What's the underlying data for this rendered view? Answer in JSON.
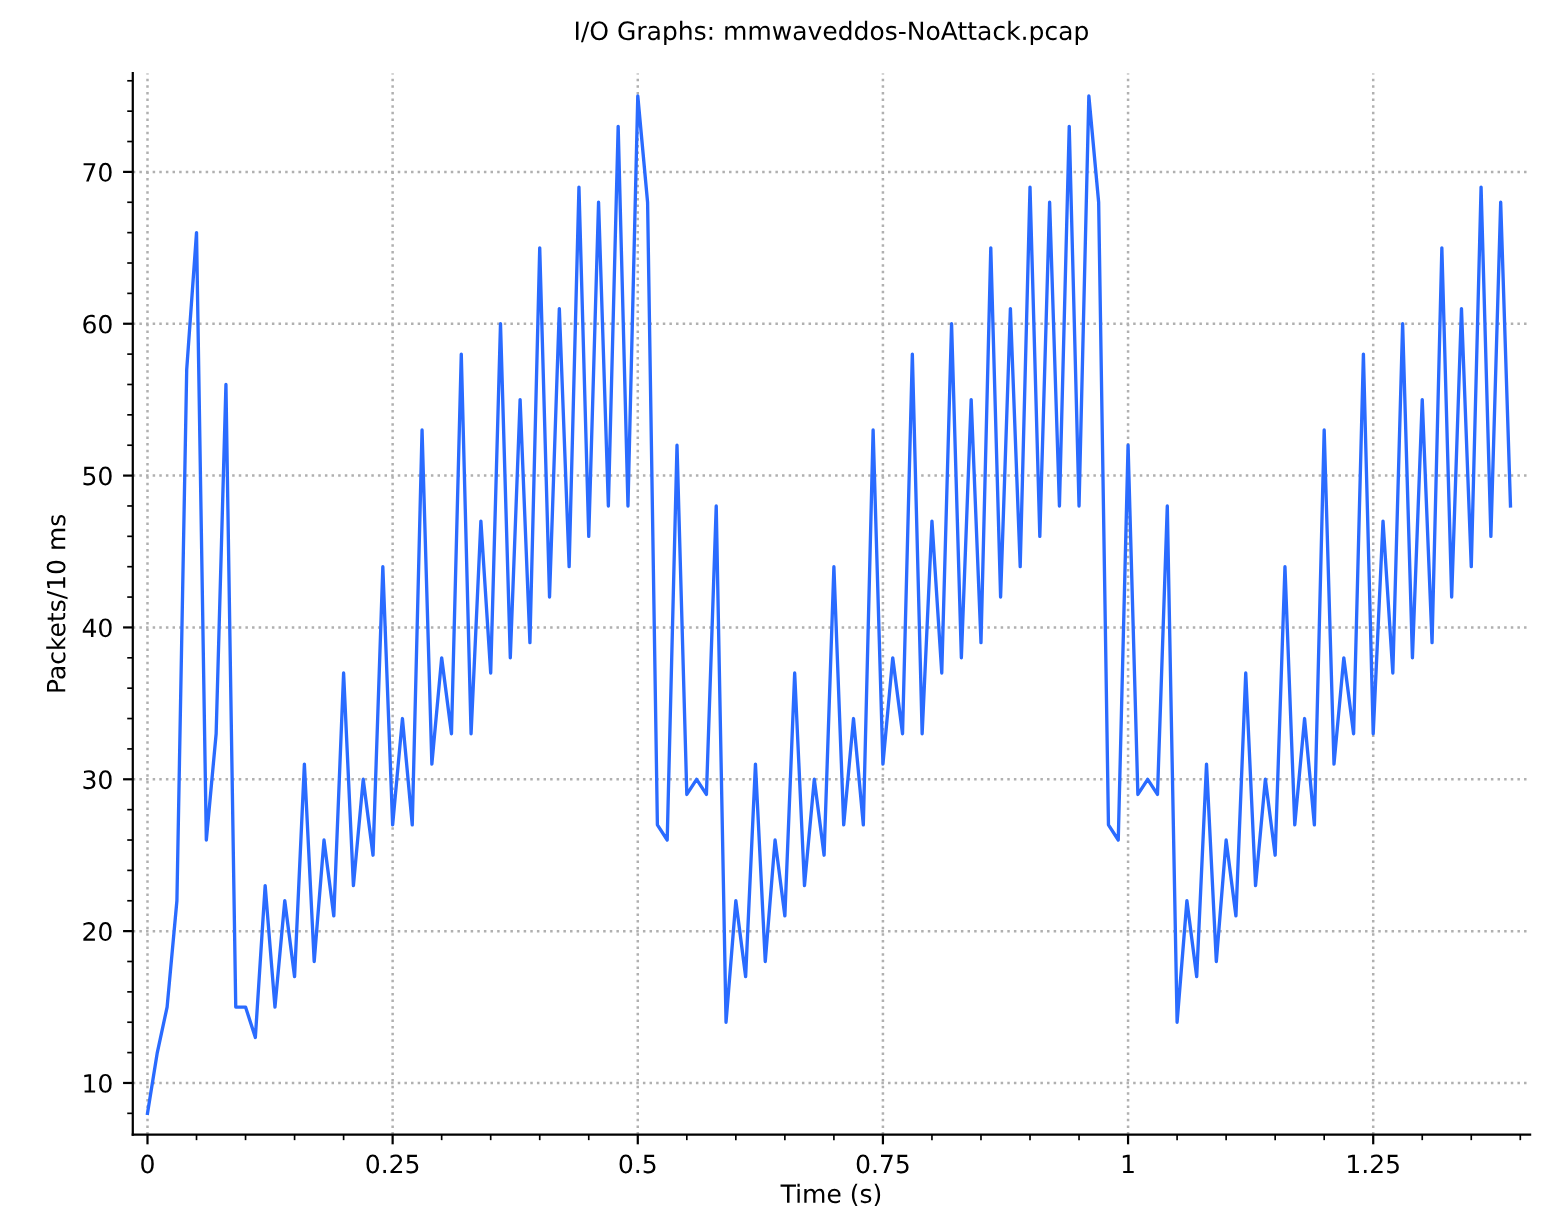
{
  "chart_data": {
    "type": "line",
    "title": "I/O Graphs: mmwaveddos-NoAttack.pcap",
    "xlabel": "Time (s)",
    "ylabel": "Packets/10 ms",
    "x": [
      0,
      0.01,
      0.02,
      0.03,
      0.04,
      0.05,
      0.06,
      0.07,
      0.08,
      0.09,
      0.1,
      0.11,
      0.12,
      0.13,
      0.14,
      0.15,
      0.16,
      0.17,
      0.18,
      0.19,
      0.2,
      0.21,
      0.22,
      0.23,
      0.24,
      0.25,
      0.26,
      0.27,
      0.28,
      0.29,
      0.3,
      0.31,
      0.32,
      0.33,
      0.34,
      0.35,
      0.36,
      0.37,
      0.38,
      0.39,
      0.4,
      0.41,
      0.42,
      0.43,
      0.44,
      0.45,
      0.46,
      0.47,
      0.48,
      0.49,
      0.5,
      0.51,
      0.52,
      0.53,
      0.54,
      0.55,
      0.56,
      0.57,
      0.58,
      0.59,
      0.6,
      0.61,
      0.62,
      0.63,
      0.64,
      0.65,
      0.66,
      0.67,
      0.68,
      0.69,
      0.7,
      0.71,
      0.72,
      0.73,
      0.74,
      0.75,
      0.76,
      0.77,
      0.78,
      0.79,
      0.8,
      0.81,
      0.82,
      0.83,
      0.84,
      0.85,
      0.86,
      0.87,
      0.88,
      0.89,
      0.9,
      0.91,
      0.92,
      0.93,
      0.94,
      0.95,
      0.96,
      0.97,
      0.98,
      0.99,
      1,
      1.01,
      1.02,
      1.03,
      1.04,
      1.05,
      1.06,
      1.07,
      1.08,
      1.09,
      1.1,
      1.11,
      1.12,
      1.13,
      1.14,
      1.15,
      1.16,
      1.17,
      1.18,
      1.19,
      1.2,
      1.21,
      1.22,
      1.23,
      1.24,
      1.25,
      1.26,
      1.27,
      1.28,
      1.29,
      1.3,
      1.31,
      1.32,
      1.33,
      1.34,
      1.35,
      1.36,
      1.37,
      1.38,
      1.39
    ],
    "series": [
      {
        "color": "#2a6bff",
        "values": [
          8,
          12,
          15,
          22,
          57,
          66,
          26,
          33,
          56,
          15,
          15,
          13,
          23,
          15,
          22,
          17,
          31,
          18,
          26,
          21,
          37,
          23,
          30,
          25,
          44,
          27,
          34,
          27,
          53,
          31,
          38,
          33,
          58,
          33,
          47,
          37,
          60,
          38,
          55,
          39,
          65,
          42,
          61,
          44,
          69,
          46,
          68,
          48,
          73,
          48,
          75,
          68,
          27,
          26,
          52,
          29,
          30,
          29,
          48,
          14,
          22,
          17,
          31,
          18,
          26,
          21,
          37,
          23,
          30,
          25,
          44,
          27,
          34,
          27,
          53,
          31,
          38,
          33,
          58,
          33,
          47,
          37,
          60,
          38,
          55,
          39,
          65,
          42,
          61,
          44,
          69,
          46,
          68,
          48,
          73,
          48,
          75,
          68,
          27,
          26,
          52,
          29,
          30,
          29,
          48,
          14,
          22,
          17,
          31,
          18,
          26,
          21,
          37,
          23,
          30,
          25,
          44,
          27,
          34,
          27,
          53,
          31,
          38,
          33,
          58,
          33,
          47,
          37,
          60,
          38,
          55,
          39,
          65,
          42,
          61,
          44,
          69,
          46,
          68,
          48
        ]
      }
    ],
    "xlim": [
      -0.015,
      1.41
    ],
    "ylim": [
      6.6,
      76.5
    ],
    "xticks": [
      0,
      0.25,
      0.5,
      0.75,
      1,
      1.25
    ],
    "yticks": [
      10,
      20,
      30,
      40,
      50,
      60,
      70
    ],
    "grid": true,
    "marker": "none",
    "line_style": "solid"
  }
}
